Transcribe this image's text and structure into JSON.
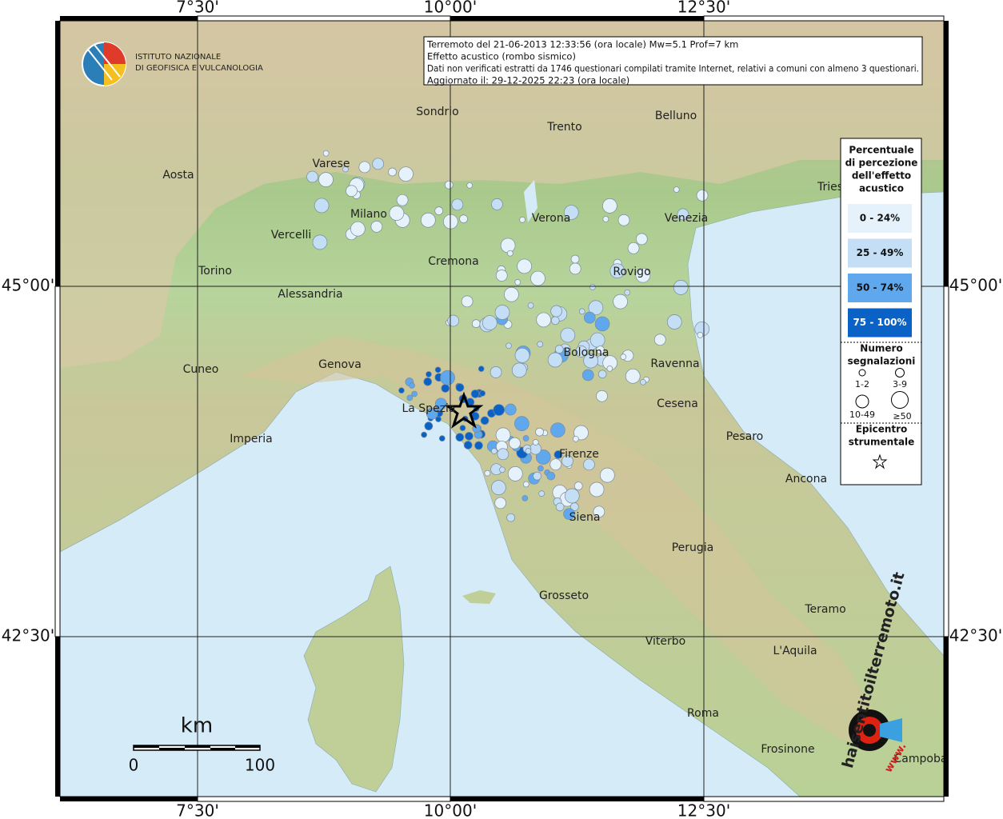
{
  "header": {
    "lines": [
      "Terremoto del 21-06-2013 12:33:56 (ora locale) Mw=5.1 Prof=7 km",
      "Effetto acustico (rombo sismico)",
      "Dati non verificati estratti da 1746 questionari compilati tramite Internet, relativi a comuni con almeno 3 questionari.",
      "Aggiornato il: 29-12-2025 22:23 (ora locale)"
    ]
  },
  "logo": {
    "line1": "ISTITUTO NAZIONALE",
    "line2": "DI GEOFISICA E VULCANOLOGIA"
  },
  "grid": {
    "longitudes": [
      "7°30'",
      "10°00'",
      "12°30'"
    ],
    "latitudes": [
      "45°00'",
      "42°30'"
    ]
  },
  "cities": [
    "Sondrio",
    "Trento",
    "Belluno",
    "Aosta",
    "Varese",
    "Tries",
    "Milano",
    "Verona",
    "Venezia",
    "Vercelli",
    "Torino",
    "Cremona",
    "Rovigo",
    "Alessandria",
    "Bologna",
    "Ravenna",
    "Cuneo",
    "Genova",
    "Cesena",
    "La Spezia",
    "Pesaro",
    "Imperia",
    "Firenze",
    "Ancona",
    "Siena",
    "Perugia",
    "Grosseto",
    "Teramo",
    "Viterbo",
    "L'Aquila",
    "Roma",
    "Frosinone",
    "Campoba"
  ],
  "legend": {
    "title": [
      "Percentuale",
      "di percezione",
      "dell'effetto",
      "acustico"
    ],
    "classes": [
      {
        "label": "0 - 24%",
        "color": "#e6f2fb"
      },
      {
        "label": "25 - 49%",
        "color": "#c4dff5"
      },
      {
        "label": "50 - 74%",
        "color": "#5fa8ee"
      },
      {
        "label": "75 - 100%",
        "color": "#0b62c6"
      }
    ],
    "count_title": [
      "Numero",
      "segnalazioni"
    ],
    "sizes": [
      "1-2",
      "3-9",
      "10-49",
      "≥50"
    ],
    "epicenter": [
      "Epicentro",
      "strumentale"
    ]
  },
  "scale": {
    "unit": "km",
    "ticks": [
      "0",
      "100"
    ]
  },
  "watermark": {
    "site": "haisentitoilterremoto.it",
    "prefix": "www."
  }
}
